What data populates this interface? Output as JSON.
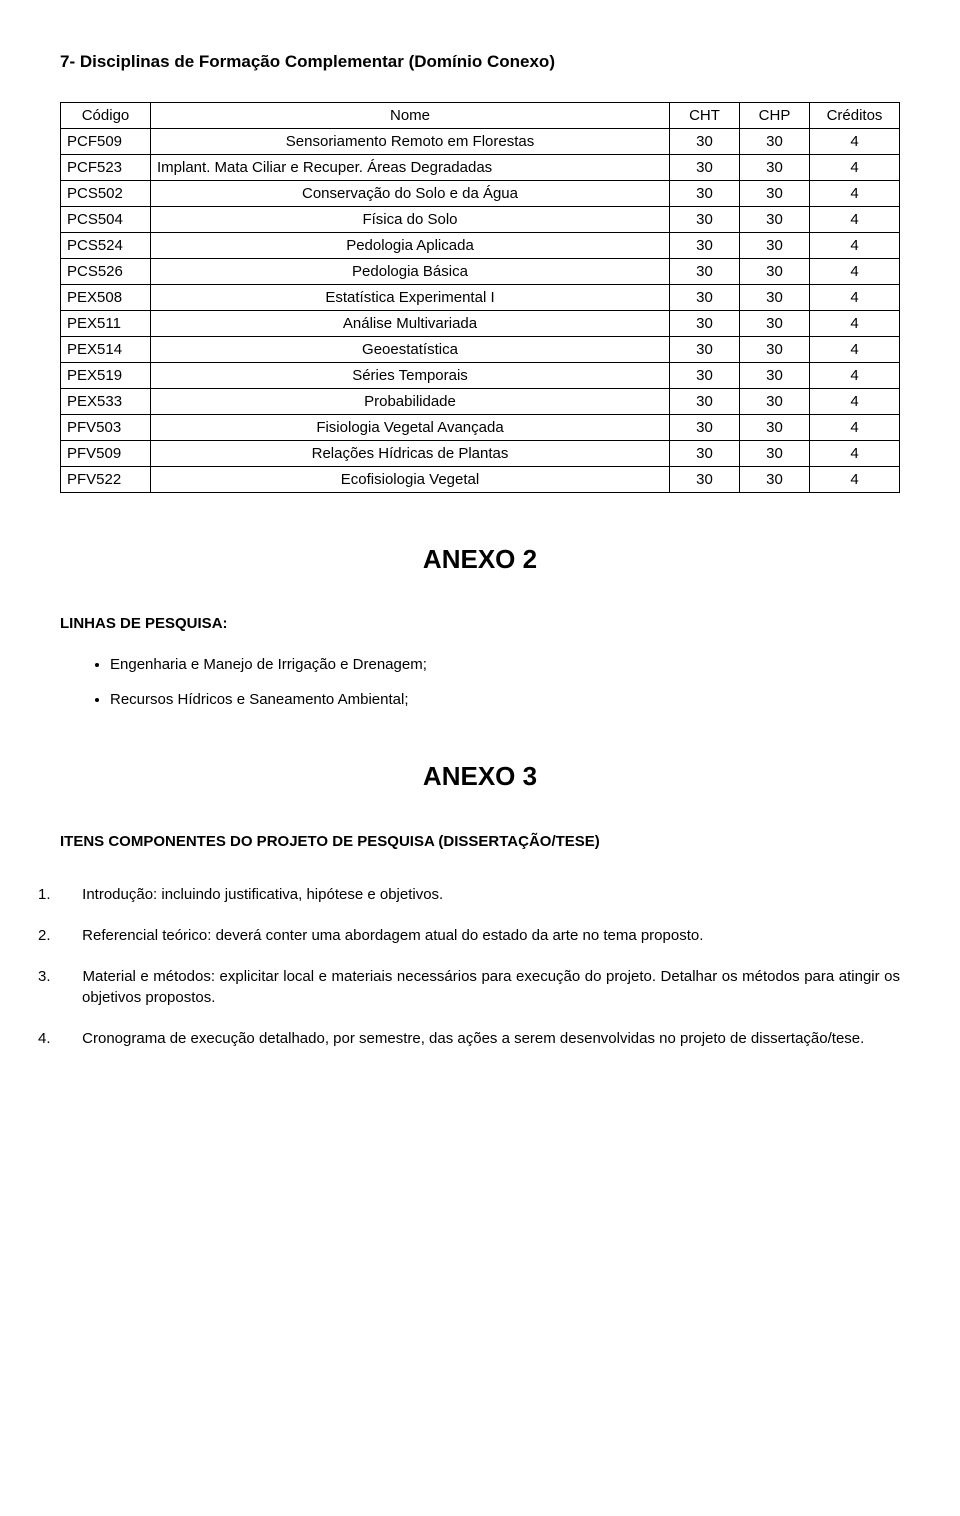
{
  "section7": {
    "title": "7- Disciplinas de Formação Complementar (Domínio Conexo)",
    "headers": {
      "code": "Código",
      "name": "Nome",
      "cht": "CHT",
      "chp": "CHP",
      "cred": "Créditos"
    },
    "rows": [
      {
        "code": "PCF509",
        "name": "Sensoriamento Remoto em Florestas",
        "cht": "30",
        "chp": "30",
        "cred": "4",
        "nameAlign": "center"
      },
      {
        "code": "PCF523",
        "name": "Implant. Mata Ciliar e Recuper. Áreas Degradadas",
        "cht": "30",
        "chp": "30",
        "cred": "4",
        "nameAlign": "left"
      },
      {
        "code": "PCS502",
        "name": "Conservação do Solo e da Água",
        "cht": "30",
        "chp": "30",
        "cred": "4",
        "nameAlign": "center"
      },
      {
        "code": "PCS504",
        "name": "Física do Solo",
        "cht": "30",
        "chp": "30",
        "cred": "4",
        "nameAlign": "center"
      },
      {
        "code": "PCS524",
        "name": "Pedologia Aplicada",
        "cht": "30",
        "chp": "30",
        "cred": "4",
        "nameAlign": "center"
      },
      {
        "code": "PCS526",
        "name": "Pedologia Básica",
        "cht": "30",
        "chp": "30",
        "cred": "4",
        "nameAlign": "center"
      },
      {
        "code": "PEX508",
        "name": "Estatística Experimental I",
        "cht": "30",
        "chp": "30",
        "cred": "4",
        "nameAlign": "center"
      },
      {
        "code": "PEX511",
        "name": "Análise Multivariada",
        "cht": "30",
        "chp": "30",
        "cred": "4",
        "nameAlign": "center"
      },
      {
        "code": "PEX514",
        "name": "Geoestatística",
        "cht": "30",
        "chp": "30",
        "cred": "4",
        "nameAlign": "center"
      },
      {
        "code": "PEX519",
        "name": "Séries Temporais",
        "cht": "30",
        "chp": "30",
        "cred": "4",
        "nameAlign": "center"
      },
      {
        "code": "PEX533",
        "name": "Probabilidade",
        "cht": "30",
        "chp": "30",
        "cred": "4",
        "nameAlign": "center"
      },
      {
        "code": "PFV503",
        "name": "Fisiologia Vegetal Avançada",
        "cht": "30",
        "chp": "30",
        "cred": "4",
        "nameAlign": "center"
      },
      {
        "code": "PFV509",
        "name": "Relações Hídricas de Plantas",
        "cht": "30",
        "chp": "30",
        "cred": "4",
        "nameAlign": "center"
      },
      {
        "code": "PFV522",
        "name": "Ecofisiologia Vegetal",
        "cht": "30",
        "chp": "30",
        "cred": "4",
        "nameAlign": "center"
      }
    ]
  },
  "anexo2": {
    "title": "ANEXO 2",
    "subhead": "LINHAS DE PESQUISA:",
    "bullets": [
      "Engenharia e Manejo de Irrigação e Drenagem;",
      "Recursos Hídricos e Saneamento Ambiental;"
    ]
  },
  "anexo3": {
    "title": "ANEXO 3",
    "subhead": "ITENS COMPONENTES DO PROJETO DE PESQUISA (DISSERTAÇÃO/TESE)",
    "items": [
      {
        "n": "1.",
        "text": "Introdução: incluindo justificativa, hipótese e objetivos."
      },
      {
        "n": "2.",
        "text": "Referencial teórico: deverá conter uma abordagem atual do estado da arte no tema proposto."
      },
      {
        "n": "3.",
        "text": "Material e métodos: explicitar local e materiais necessários para execução do projeto. Detalhar os métodos para atingir os objetivos propostos."
      },
      {
        "n": "4.",
        "text": "Cronograma de execução detalhado, por semestre, das ações a serem desenvolvidas no projeto de dissertação/tese."
      }
    ]
  }
}
